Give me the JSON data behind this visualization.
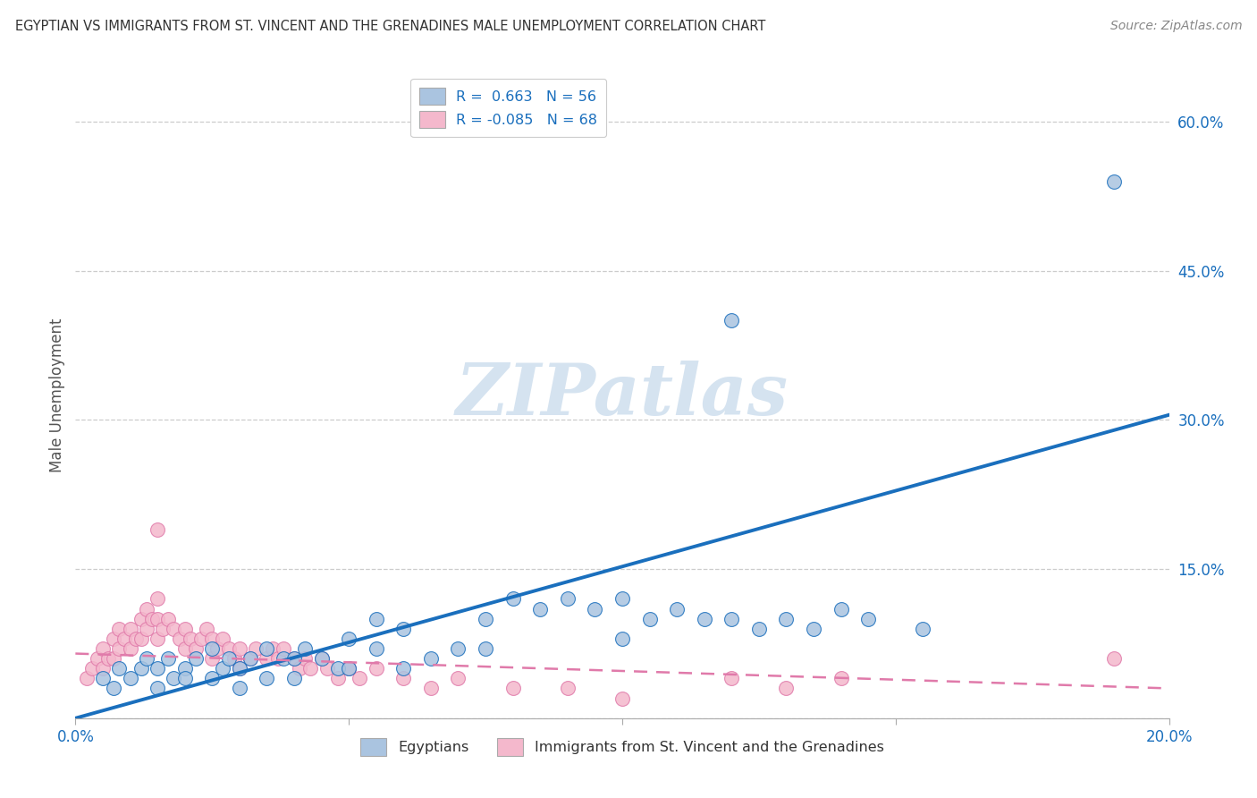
{
  "title": "EGYPTIAN VS IMMIGRANTS FROM ST. VINCENT AND THE GRENADINES MALE UNEMPLOYMENT CORRELATION CHART",
  "source": "Source: ZipAtlas.com",
  "ylabel": "Male Unemployment",
  "xlim": [
    0.0,
    0.2
  ],
  "ylim": [
    0.0,
    0.65
  ],
  "yticks": [
    0.0,
    0.15,
    0.3,
    0.45,
    0.6
  ],
  "ytick_labels": [
    "",
    "15.0%",
    "30.0%",
    "45.0%",
    "60.0%"
  ],
  "xticks": [
    0.0,
    0.05,
    0.1,
    0.15,
    0.2
  ],
  "xtick_labels": [
    "0.0%",
    "",
    "",
    "",
    "20.0%"
  ],
  "grid_color": "#cccccc",
  "background_color": "#ffffff",
  "blue_color": "#aac4e0",
  "pink_color": "#f4b8cc",
  "blue_line_color": "#1a6fbd",
  "pink_line_color": "#e07aaa",
  "watermark_text": "ZIPatlas",
  "watermark_color": "#d5e3f0",
  "legend_blue_label": "R =  0.663   N = 56",
  "legend_pink_label": "R = -0.085   N = 68",
  "legend_bottom_blue": "Egyptians",
  "legend_bottom_pink": "Immigrants from St. Vincent and the Grenadines",
  "blue_line_x": [
    0.0,
    0.2
  ],
  "blue_line_y": [
    0.0,
    0.305
  ],
  "pink_line_x": [
    0.0,
    0.2
  ],
  "pink_line_y": [
    0.065,
    0.03
  ],
  "blue_scatter_x": [
    0.005,
    0.007,
    0.008,
    0.01,
    0.012,
    0.013,
    0.015,
    0.015,
    0.017,
    0.018,
    0.02,
    0.02,
    0.022,
    0.025,
    0.025,
    0.027,
    0.028,
    0.03,
    0.03,
    0.032,
    0.035,
    0.035,
    0.038,
    0.04,
    0.04,
    0.042,
    0.045,
    0.048,
    0.05,
    0.05,
    0.055,
    0.055,
    0.06,
    0.06,
    0.065,
    0.07,
    0.075,
    0.075,
    0.08,
    0.085,
    0.09,
    0.095,
    0.1,
    0.1,
    0.105,
    0.11,
    0.115,
    0.12,
    0.125,
    0.13,
    0.135,
    0.14,
    0.145,
    0.155,
    0.19,
    0.12
  ],
  "blue_scatter_y": [
    0.04,
    0.03,
    0.05,
    0.04,
    0.05,
    0.06,
    0.05,
    0.03,
    0.06,
    0.04,
    0.05,
    0.04,
    0.06,
    0.07,
    0.04,
    0.05,
    0.06,
    0.05,
    0.03,
    0.06,
    0.07,
    0.04,
    0.06,
    0.06,
    0.04,
    0.07,
    0.06,
    0.05,
    0.08,
    0.05,
    0.1,
    0.07,
    0.09,
    0.05,
    0.06,
    0.07,
    0.1,
    0.07,
    0.12,
    0.11,
    0.12,
    0.11,
    0.12,
    0.08,
    0.1,
    0.11,
    0.1,
    0.1,
    0.09,
    0.1,
    0.09,
    0.11,
    0.1,
    0.09,
    0.54,
    0.4
  ],
  "pink_scatter_x": [
    0.002,
    0.003,
    0.004,
    0.005,
    0.005,
    0.006,
    0.007,
    0.007,
    0.008,
    0.008,
    0.009,
    0.01,
    0.01,
    0.011,
    0.012,
    0.012,
    0.013,
    0.013,
    0.014,
    0.015,
    0.015,
    0.015,
    0.016,
    0.017,
    0.018,
    0.019,
    0.02,
    0.02,
    0.021,
    0.022,
    0.023,
    0.024,
    0.025,
    0.025,
    0.026,
    0.027,
    0.028,
    0.029,
    0.03,
    0.03,
    0.032,
    0.033,
    0.035,
    0.036,
    0.037,
    0.038,
    0.04,
    0.041,
    0.042,
    0.043,
    0.045,
    0.046,
    0.048,
    0.05,
    0.052,
    0.055,
    0.06,
    0.065,
    0.07,
    0.08,
    0.09,
    0.1,
    0.12,
    0.13,
    0.14,
    0.19,
    0.015,
    0.05
  ],
  "pink_scatter_y": [
    0.04,
    0.05,
    0.06,
    0.07,
    0.05,
    0.06,
    0.08,
    0.06,
    0.09,
    0.07,
    0.08,
    0.09,
    0.07,
    0.08,
    0.1,
    0.08,
    0.11,
    0.09,
    0.1,
    0.12,
    0.1,
    0.08,
    0.09,
    0.1,
    0.09,
    0.08,
    0.09,
    0.07,
    0.08,
    0.07,
    0.08,
    0.09,
    0.08,
    0.06,
    0.07,
    0.08,
    0.07,
    0.06,
    0.07,
    0.05,
    0.06,
    0.07,
    0.06,
    0.07,
    0.06,
    0.07,
    0.06,
    0.05,
    0.06,
    0.05,
    0.06,
    0.05,
    0.04,
    0.05,
    0.04,
    0.05,
    0.04,
    0.03,
    0.04,
    0.03,
    0.03,
    0.02,
    0.04,
    0.03,
    0.04,
    0.06,
    0.19,
    0.05
  ]
}
